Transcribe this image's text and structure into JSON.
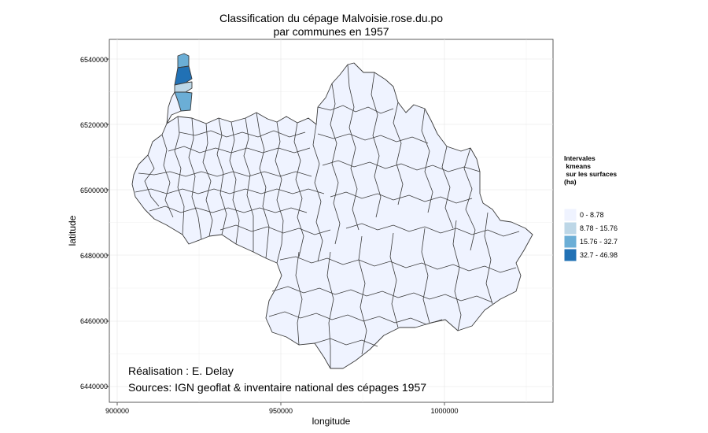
{
  "title": {
    "line1": "Classification du cépage Malvoisie.rose.du.po",
    "line2": "par communes en 1957"
  },
  "axes": {
    "xlabel": "longitude",
    "ylabel": "latitude",
    "xticks": [
      "900000",
      "950000",
      "1000000"
    ],
    "yticks": [
      "6540000",
      "6520000",
      "6500000",
      "6480000",
      "6460000",
      "6440000"
    ]
  },
  "legend": {
    "title_lines": [
      "Intervales",
      " kmeans",
      " sur les surfaces",
      "(ha)"
    ],
    "items": [
      {
        "label": "0 - 8.78",
        "color": "#eff3ff"
      },
      {
        "label": "8.78 - 15.76",
        "color": "#bdd7e7"
      },
      {
        "label": "15.76 - 32.7",
        "color": "#6baed6"
      },
      {
        "label": "32.7 - 46.98",
        "color": "#2171b5"
      }
    ]
  },
  "annotations": {
    "author": "Réalisation : E. Delay",
    "sources": "Sources: IGN geoflat & inventaire national des cépages 1957"
  },
  "map": {
    "panel_color": "#ffffff",
    "grid_color": "#ebebeb",
    "border_color": "#333333",
    "highlighted_communes": [
      {
        "class": "15.76 - 32.7"
      },
      {
        "class": "32.7 - 46.98"
      },
      {
        "class": "8.78 - 15.76"
      },
      {
        "class": "15.76 - 32.7"
      }
    ]
  }
}
